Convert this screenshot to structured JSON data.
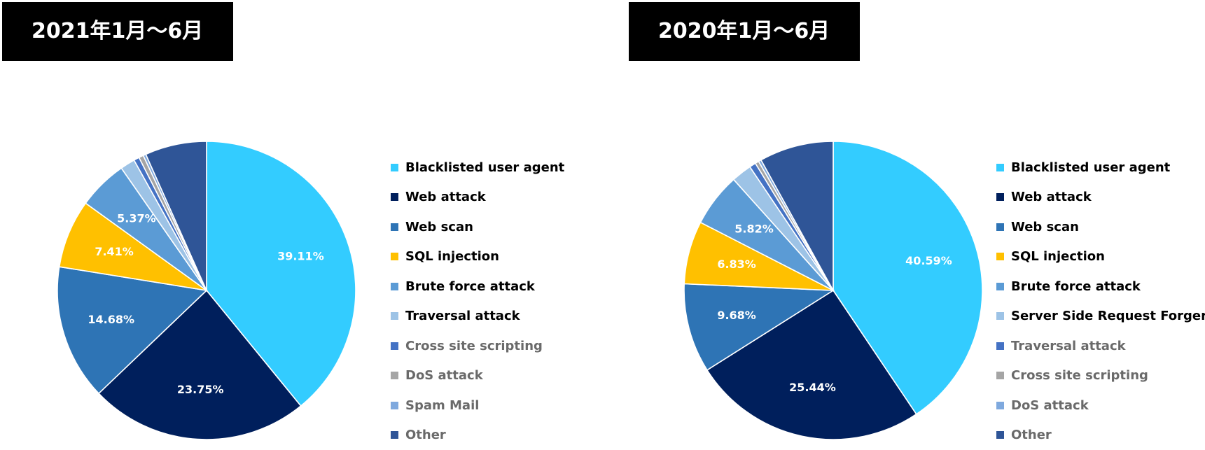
{
  "chart_data": [
    {
      "type": "pie",
      "title": "2021年1月〜6月",
      "slices": [
        {
          "name": "Blacklisted user agent",
          "value": 39.11,
          "label": "39.11%",
          "color": "#33ccff",
          "legend_tone": "dark"
        },
        {
          "name": "Web attack",
          "value": 23.75,
          "label": "23.75%",
          "color": "#001f5c",
          "legend_tone": "dark"
        },
        {
          "name": "Web scan",
          "value": 14.68,
          "label": "14.68%",
          "color": "#2e74b5",
          "legend_tone": "dark"
        },
        {
          "name": "SQL injection",
          "value": 7.41,
          "label": "7.41%",
          "color": "#ffc000",
          "legend_tone": "dark"
        },
        {
          "name": "Brute force attack",
          "value": 5.37,
          "label": "5.37%",
          "color": "#5b9bd5",
          "legend_tone": "dark"
        },
        {
          "name": "Traversal attack",
          "value": 1.6,
          "label": "",
          "color": "#9dc3e6",
          "legend_tone": "dark"
        },
        {
          "name": "Cross site scripting",
          "value": 0.6,
          "label": "",
          "color": "#4472c4",
          "legend_tone": "grey"
        },
        {
          "name": "DoS attack",
          "value": 0.5,
          "label": "",
          "color": "#a5a5a5",
          "legend_tone": "grey"
        },
        {
          "name": "Spam Mail",
          "value": 0.3,
          "label": "",
          "color": "#7fa9de",
          "legend_tone": "grey"
        },
        {
          "name": "Other",
          "value": 6.68,
          "label": "",
          "color": "#2f5597",
          "legend_tone": "grey"
        }
      ]
    },
    {
      "type": "pie",
      "title": "2020年1月〜6月",
      "slices": [
        {
          "name": "Blacklisted user agent",
          "value": 40.59,
          "label": "40.59%",
          "color": "#33ccff",
          "legend_tone": "dark"
        },
        {
          "name": "Web attack",
          "value": 25.44,
          "label": "25.44%",
          "color": "#001f5c",
          "legend_tone": "dark"
        },
        {
          "name": "Web scan",
          "value": 9.68,
          "label": "9.68%",
          "color": "#2e74b5",
          "legend_tone": "dark"
        },
        {
          "name": "SQL injection",
          "value": 6.83,
          "label": "6.83%",
          "color": "#ffc000",
          "legend_tone": "dark"
        },
        {
          "name": "Brute force attack",
          "value": 5.82,
          "label": "5.82%",
          "color": "#5b9bd5",
          "legend_tone": "dark"
        },
        {
          "name": "Server Side Request Forgery",
          "value": 2.2,
          "label": "",
          "color": "#9dc3e6",
          "legend_tone": "dark"
        },
        {
          "name": "Traversal attack",
          "value": 0.7,
          "label": "",
          "color": "#4472c4",
          "legend_tone": "grey"
        },
        {
          "name": "Cross site scripting",
          "value": 0.4,
          "label": "",
          "color": "#a5a5a5",
          "legend_tone": "grey"
        },
        {
          "name": "DoS attack",
          "value": 0.3,
          "label": "",
          "color": "#7fa9de",
          "legend_tone": "grey"
        },
        {
          "name": "Other",
          "value": 8.04,
          "label": "",
          "color": "#2f5597",
          "legend_tone": "grey"
        }
      ]
    }
  ]
}
